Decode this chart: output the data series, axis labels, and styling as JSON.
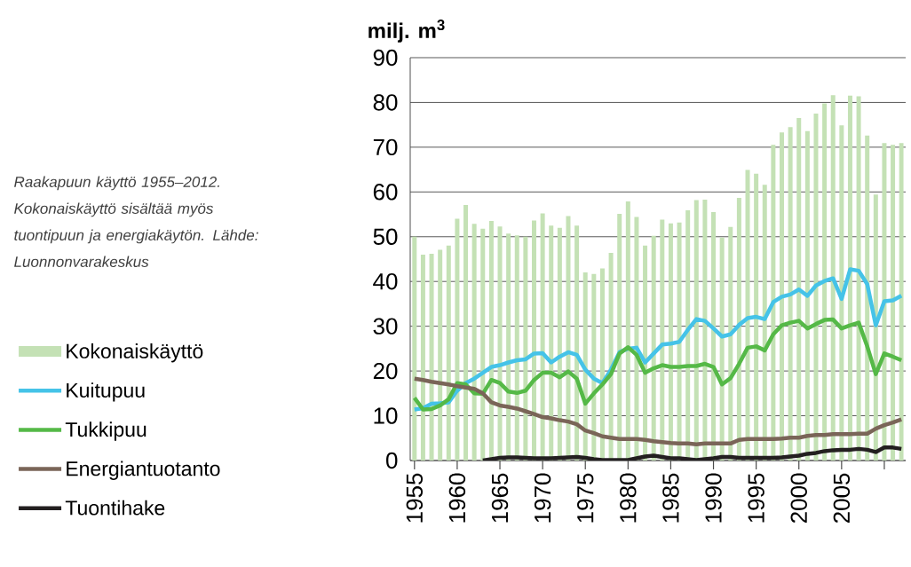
{
  "chart_data": {
    "type": "bar",
    "ylabel": "milj. m$^{3}$",
    "annotations": [
      "Raakapuun käyttö 1955–2012. Kokonaiskäyttö sisältää myös tuontipuun ja energiakäytön. Lähde: Luonnonvarakeskus"
    ],
    "x": [
      1955,
      1956,
      1957,
      1958,
      1959,
      1960,
      1961,
      1962,
      1963,
      1964,
      1965,
      1966,
      1967,
      1968,
      1969,
      1970,
      1971,
      1972,
      1973,
      1974,
      1975,
      1976,
      1977,
      1978,
      1979,
      1980,
      1981,
      1982,
      1983,
      1984,
      1985,
      1986,
      1987,
      1988,
      1989,
      1990,
      1991,
      1992,
      1993,
      1994,
      1995,
      1996,
      1997,
      1998,
      1999,
      2000,
      2001,
      2002,
      2003,
      2004,
      2005,
      2006,
      2007,
      2008,
      2009,
      2010,
      2011,
      2012
    ],
    "series": [
      {
        "name": "Kokonaiskäyttö",
        "color": "#c4e1b5",
        "values": [
          50.0,
          46.0,
          46.2,
          47.1,
          48.0,
          54.0,
          57.1,
          52.9,
          51.8,
          53.5,
          52.3,
          50.7,
          50.3,
          50.0,
          53.6,
          55.2,
          52.5,
          52.0,
          54.6,
          52.5,
          42.0,
          41.7,
          42.9,
          46.4,
          55.1,
          57.9,
          54.4,
          48.0,
          50.2,
          53.8,
          53.0,
          53.2,
          55.9,
          58.2,
          58.3,
          55.5,
          49.8,
          52.2,
          58.7,
          64.9,
          64.1,
          61.6,
          70.5,
          73.3,
          74.5,
          76.5,
          73.6,
          77.5,
          79.8,
          81.6,
          74.9,
          81.5,
          81.4,
          72.6,
          59.4,
          70.9,
          70.5,
          70.9
        ]
      },
      {
        "name": "Kuitupuu",
        "type": "line",
        "color": "#45c3e8",
        "values": [
          11.4,
          11.7,
          12.7,
          12.8,
          13.0,
          15.6,
          17.3,
          18.3,
          19.6,
          20.9,
          21.3,
          21.9,
          22.4,
          22.6,
          23.9,
          24.0,
          21.9,
          23.2,
          24.2,
          23.6,
          20.3,
          18.3,
          17.3,
          20.3,
          24.2,
          25.0,
          25.2,
          21.9,
          23.9,
          25.9,
          26.1,
          26.5,
          29.2,
          31.6,
          31.2,
          29.5,
          27.7,
          28.2,
          30.3,
          31.8,
          32.1,
          31.6,
          35.4,
          36.6,
          37.1,
          38.2,
          36.8,
          39.1,
          40.1,
          40.7,
          36.1,
          42.7,
          42.4,
          39.4,
          30.2,
          35.6,
          35.8,
          36.8
        ]
      },
      {
        "name": "Tukkipuu",
        "type": "line",
        "color": "#55b947",
        "values": [
          14.0,
          11.4,
          11.5,
          12.3,
          13.7,
          17.3,
          17.0,
          15.0,
          14.9,
          18.0,
          17.3,
          15.4,
          15.1,
          15.6,
          18.0,
          19.6,
          19.6,
          18.6,
          19.9,
          18.3,
          12.7,
          15.0,
          17.0,
          19.3,
          23.9,
          25.3,
          23.6,
          19.6,
          20.6,
          21.3,
          20.9,
          20.9,
          21.1,
          21.1,
          21.6,
          20.9,
          17.0,
          18.4,
          21.6,
          25.2,
          25.5,
          24.6,
          28.2,
          30.2,
          30.8,
          31.2,
          29.5,
          30.5,
          31.4,
          31.5,
          29.5,
          30.2,
          30.8,
          25.5,
          19.3,
          23.9,
          23.2,
          22.4
        ]
      },
      {
        "name": "Energiantuotanto",
        "type": "line",
        "color": "#7a6558",
        "values": [
          18.3,
          18.0,
          17.6,
          17.3,
          17.0,
          16.6,
          16.3,
          16.0,
          15.0,
          13.0,
          12.3,
          12.0,
          11.6,
          11.0,
          10.4,
          9.7,
          9.4,
          9.0,
          8.7,
          8.1,
          6.7,
          6.1,
          5.4,
          5.1,
          4.8,
          4.8,
          4.8,
          4.6,
          4.3,
          4.1,
          3.9,
          3.8,
          3.8,
          3.6,
          3.8,
          3.8,
          3.8,
          3.8,
          4.6,
          4.8,
          4.8,
          4.8,
          4.8,
          4.9,
          5.1,
          5.1,
          5.5,
          5.7,
          5.7,
          5.9,
          5.9,
          5.9,
          6.0,
          6.0,
          7.1,
          7.9,
          8.5,
          9.2
        ]
      },
      {
        "name": "Tuontihake",
        "type": "line",
        "color": "#231f20",
        "values": [
          null,
          null,
          null,
          null,
          null,
          null,
          null,
          null,
          0.0,
          0.3,
          0.6,
          0.7,
          0.7,
          0.6,
          0.5,
          0.5,
          0.5,
          0.6,
          0.7,
          0.8,
          0.6,
          0.3,
          0.1,
          0.1,
          0.1,
          0.1,
          0.5,
          0.9,
          1.1,
          0.8,
          0.5,
          0.5,
          0.3,
          0.1,
          0.3,
          0.5,
          0.8,
          0.8,
          0.6,
          0.6,
          0.6,
          0.6,
          0.6,
          0.7,
          0.9,
          1.1,
          1.5,
          1.7,
          2.1,
          2.3,
          2.4,
          2.4,
          2.6,
          2.4,
          1.9,
          2.9,
          2.9,
          2.6
        ]
      }
    ],
    "xlim": [
      1954.5,
      2012.5
    ],
    "xticks": [
      1955,
      1960,
      1965,
      1970,
      1975,
      1980,
      1985,
      1990,
      1995,
      2000,
      2005,
      {
        "value": 2010,
        "label": null
      }
    ],
    "ylim": [
      0,
      90
    ],
    "yticks": [
      0,
      10,
      20,
      30,
      40,
      50,
      60,
      70,
      80,
      90
    ],
    "grid": "y",
    "legend": "left"
  }
}
